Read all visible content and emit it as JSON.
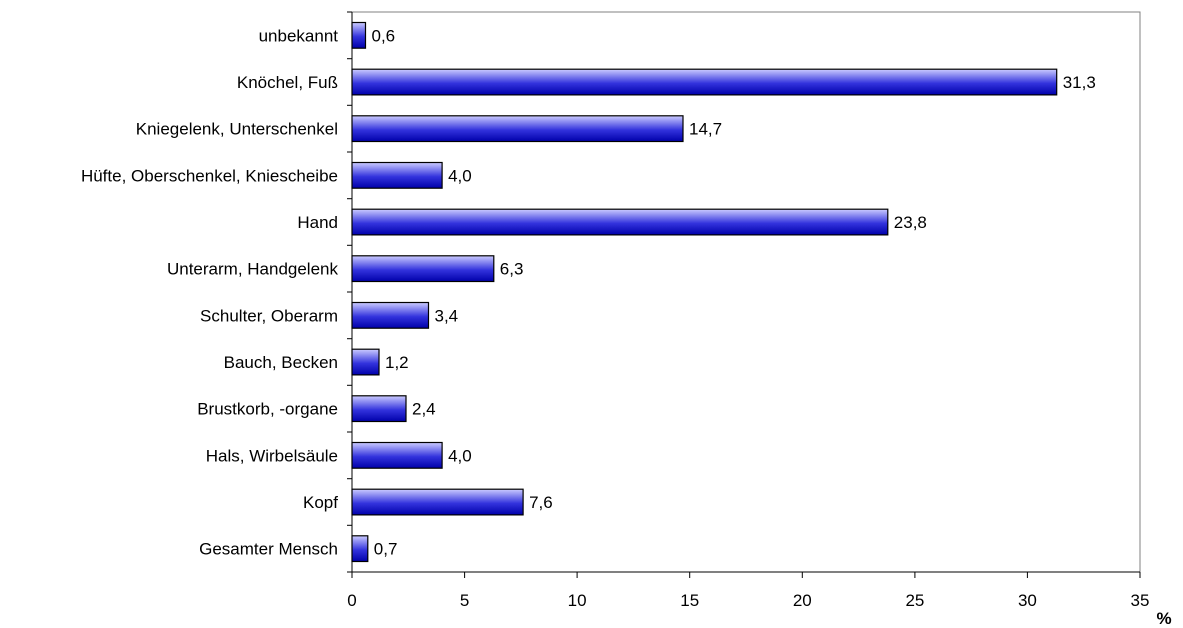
{
  "chart_data": {
    "type": "bar",
    "orientation": "horizontal",
    "title": "",
    "xlabel": "",
    "ylabel": "",
    "x_unit": "%",
    "categories": [
      "unbekannt",
      "Knöchel, Fuß",
      "Kniegelenk, Unterschenkel",
      "Hüfte, Oberschenkel, Kniescheibe",
      "Hand",
      "Unterarm, Handgelenk",
      "Schulter, Oberarm",
      "Bauch, Becken",
      "Brustkorb, -organe",
      "Hals, Wirbelsäule",
      "Kopf",
      "Gesamter Mensch"
    ],
    "values": [
      0.6,
      31.3,
      14.7,
      4.0,
      23.8,
      6.3,
      3.4,
      1.2,
      2.4,
      4.0,
      7.6,
      0.7
    ],
    "value_labels": [
      "0,6",
      "31,3",
      "14,7",
      "4,0",
      "23,8",
      "6,3",
      "3,4",
      "1,2",
      "2,4",
      "4,0",
      "7,6",
      "0,7"
    ],
    "x_ticks": [
      0,
      5,
      10,
      15,
      20,
      25,
      30,
      35
    ],
    "xlim": [
      0,
      35
    ],
    "grid": false,
    "legend": "none",
    "colors": {
      "bar_light": "#ccccff",
      "bar_dark": "#0000aa",
      "bar_stroke": "#000000",
      "frame": "#808080"
    }
  }
}
